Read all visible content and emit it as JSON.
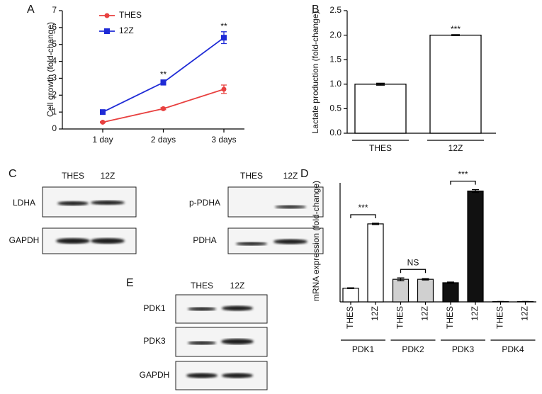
{
  "chart_data": [
    {
      "type": "line",
      "panel": "A",
      "ylabel": "Cell growth (fold-change)",
      "categories": [
        "1 day",
        "2 days",
        "3 days"
      ],
      "series": [
        {
          "name": "THES",
          "color": "#e8403f",
          "values": [
            0.4,
            1.2,
            2.35
          ],
          "errors": [
            0.03,
            0.06,
            0.25
          ]
        },
        {
          "name": "12Z",
          "color": "#1f2bd6",
          "values": [
            1.0,
            2.75,
            5.4
          ],
          "errors": [
            0.05,
            0.15,
            0.35
          ]
        }
      ],
      "annotations": [
        null,
        "**",
        "**"
      ],
      "ylim": [
        0,
        7
      ],
      "yticks": [
        0,
        1,
        2,
        3,
        4,
        5,
        6,
        7
      ],
      "legend": "upper-left"
    },
    {
      "type": "bar",
      "panel": "B",
      "ylabel": "Lactate production (fold-change)",
      "categories": [
        "THES",
        "12Z"
      ],
      "values": [
        1.0,
        2.0
      ],
      "errors": [
        0.02,
        0.01
      ],
      "annotations": [
        null,
        "***"
      ],
      "color": "#ffffff",
      "ylim": [
        0,
        2.5
      ],
      "yticks": [
        {
          "value": 0,
          "label": "0.0"
        },
        {
          "value": 0.5,
          "label": "0.5"
        },
        {
          "value": 1,
          "label": "1.0"
        },
        {
          "value": 1.5,
          "label": "1.5"
        },
        {
          "value": 2,
          "label": "2.0"
        },
        {
          "value": 2.5,
          "label": "2.5"
        }
      ]
    },
    {
      "type": "groupbar",
      "panel": "D",
      "ylabel": "mRNA expression (fold-change)",
      "categories": [
        "THES",
        "12Z",
        "THES",
        "12Z",
        "THES",
        "12Z",
        "THES",
        "12Z"
      ],
      "values": [
        1.0,
        5.7,
        1.65,
        1.65,
        1.4,
        8.1,
        0.02,
        0.02
      ],
      "errors": [
        0.03,
        0.05,
        0.1,
        0.05,
        0.05,
        0.1,
        0.01,
        0.01
      ],
      "colors": [
        "#ffffff",
        "#ffffff",
        "#d0d0d0",
        "#d0d0d0",
        "#111111",
        "#111111",
        "#ffffff",
        "#ffffff"
      ],
      "groups": [
        "PDK1",
        "PDK2",
        "PDK3",
        "PDK4"
      ],
      "group_annotations": [
        "***",
        "NS",
        "***",
        null
      ],
      "ylim": [
        0,
        8.7
      ]
    }
  ],
  "blots": [
    {
      "panel": "C",
      "columns": [
        "THES",
        "12Z"
      ],
      "rows": [
        "LDHA",
        "GAPDH"
      ]
    },
    {
      "columns": [
        "THES",
        "12Z"
      ],
      "rows": [
        "p-PDHA",
        "PDHA"
      ]
    },
    {
      "panel": "E",
      "columns": [
        "THES",
        "12Z"
      ],
      "rows": [
        "PDK1",
        "PDK3",
        "GAPDH"
      ]
    }
  ]
}
